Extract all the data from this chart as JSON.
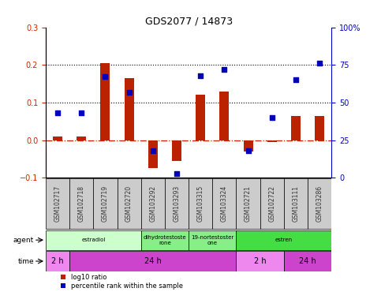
{
  "title": "GDS2077 / 14873",
  "samples": [
    "GSM102717",
    "GSM102718",
    "GSM102719",
    "GSM102720",
    "GSM103292",
    "GSM103293",
    "GSM103315",
    "GSM103324",
    "GSM102721",
    "GSM102722",
    "GSM103111",
    "GSM103286"
  ],
  "log10_ratio": [
    0.01,
    0.01,
    0.205,
    0.165,
    -0.075,
    -0.055,
    0.12,
    0.13,
    -0.03,
    -0.005,
    0.065,
    0.065
  ],
  "percentile_rank_pct": [
    43,
    43,
    67,
    57,
    18,
    3,
    68,
    72,
    18,
    40,
    65,
    76
  ],
  "ylim_left": [
    -0.1,
    0.3
  ],
  "ylim_right": [
    0,
    100
  ],
  "yticks_left": [
    -0.1,
    0.0,
    0.1,
    0.2,
    0.3
  ],
  "yticks_right": [
    0,
    25,
    50,
    75,
    100
  ],
  "hlines": [
    0.1,
    0.2
  ],
  "bar_color": "#bb2200",
  "scatter_color": "#0000bb",
  "zero_line_color": "#cc2200",
  "agent_row": [
    {
      "label": "estradiol",
      "start": 0,
      "end": 4,
      "color": "#ccffcc"
    },
    {
      "label": "dihydrotestoste\nrone",
      "start": 4,
      "end": 6,
      "color": "#88ee88"
    },
    {
      "label": "19-nortestoster\none",
      "start": 6,
      "end": 8,
      "color": "#88ee88"
    },
    {
      "label": "estren",
      "start": 8,
      "end": 12,
      "color": "#44dd44"
    }
  ],
  "time_row": [
    {
      "label": "2 h",
      "start": 0,
      "end": 1,
      "color": "#ee88ee"
    },
    {
      "label": "24 h",
      "start": 1,
      "end": 8,
      "color": "#cc44cc"
    },
    {
      "label": "2 h",
      "start": 8,
      "end": 10,
      "color": "#ee88ee"
    },
    {
      "label": "24 h",
      "start": 10,
      "end": 12,
      "color": "#cc44cc"
    }
  ],
  "legend_bar_label": "log10 ratio",
  "legend_scatter_label": "percentile rank within the sample",
  "sample_box_color": "#cccccc",
  "left_axis_color": "#cc2200",
  "right_axis_color": "#0000cc",
  "fig_width": 4.83,
  "fig_height": 3.84
}
